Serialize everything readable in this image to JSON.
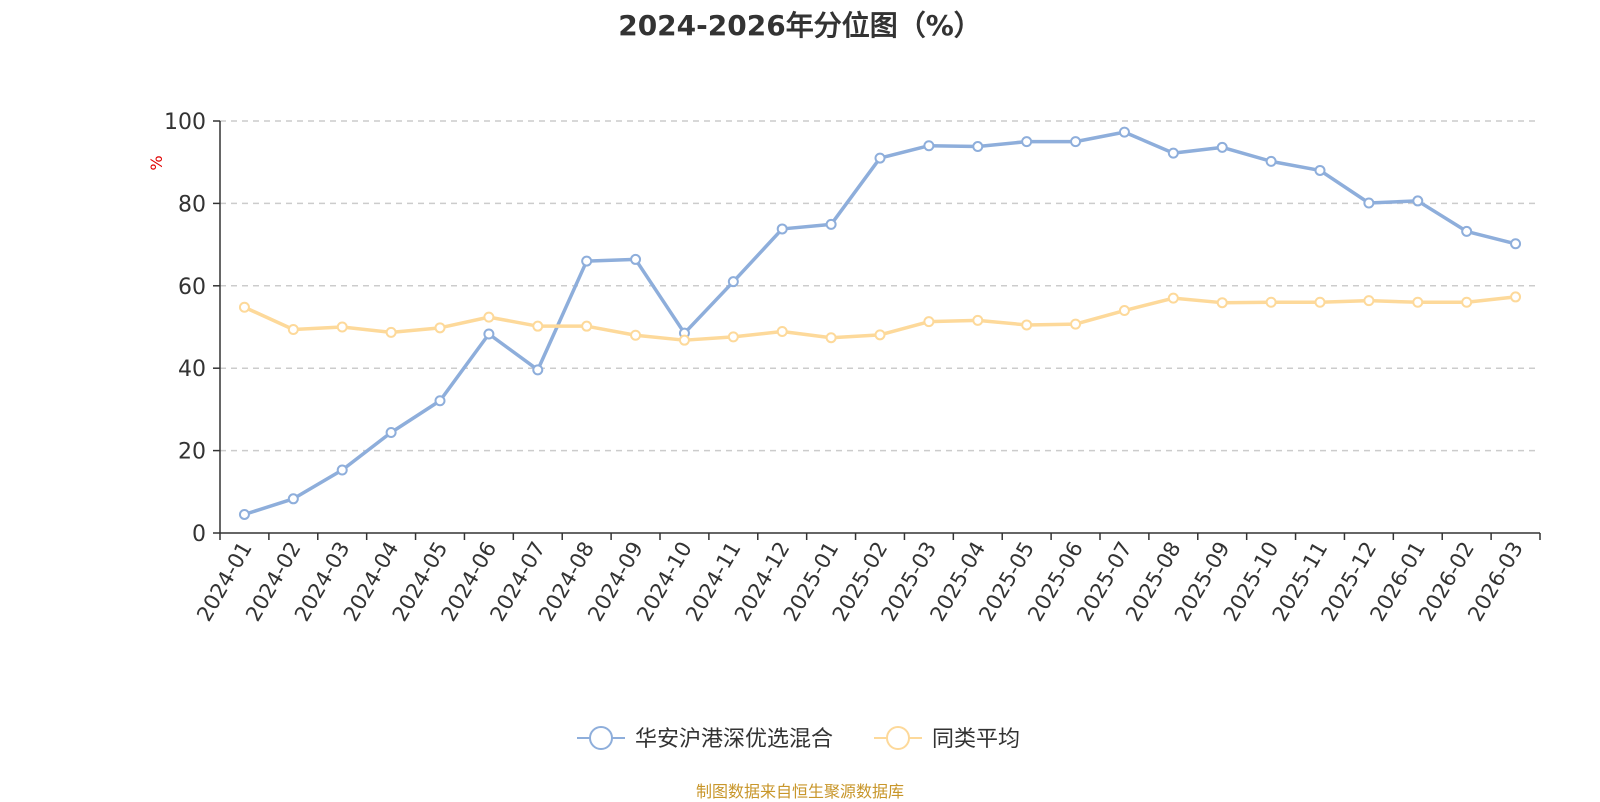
{
  "chart_data": {
    "type": "line",
    "title": "2024-2026年分位图（%）",
    "ylabel": "%",
    "ylim": [
      0,
      100
    ],
    "yticks": [
      0,
      20,
      40,
      60,
      80,
      100
    ],
    "grid": true,
    "legend_position": "bottom",
    "categories": [
      "2024-01",
      "2024-02",
      "2024-03",
      "2024-04",
      "2024-05",
      "2024-06",
      "2024-07",
      "2024-08",
      "2024-09",
      "2024-10",
      "2024-11",
      "2024-12",
      "2025-01",
      "2025-02",
      "2025-03",
      "2025-04",
      "2025-05",
      "2025-06",
      "2025-07",
      "2025-08",
      "2025-09",
      "2025-10",
      "2025-11",
      "2025-12",
      "2026-01",
      "2026-02",
      "2026-03"
    ],
    "series": [
      {
        "name": "华安沪港深优选混合",
        "color": "#8eaedb",
        "values": [
          4.5,
          8.3,
          15.3,
          24.4,
          32.1,
          48.3,
          39.6,
          66.0,
          66.4,
          48.5,
          61.0,
          73.8,
          74.9,
          91.0,
          94.0,
          93.8,
          95.0,
          95.0,
          97.3,
          92.2,
          93.6,
          90.2,
          88.0,
          80.1,
          80.6,
          73.2,
          70.2
        ]
      },
      {
        "name": "同类平均",
        "color": "#fdd99a",
        "values": [
          54.8,
          49.4,
          50.0,
          48.7,
          49.8,
          52.4,
          50.2,
          50.2,
          48.0,
          46.8,
          47.6,
          48.9,
          47.4,
          48.1,
          51.3,
          51.6,
          50.5,
          50.7,
          54.0,
          57.0,
          55.9,
          56.0,
          56.0,
          56.4,
          56.0,
          56.0,
          57.3
        ]
      }
    ]
  },
  "source_note": "制图数据来自恒生聚源数据库"
}
